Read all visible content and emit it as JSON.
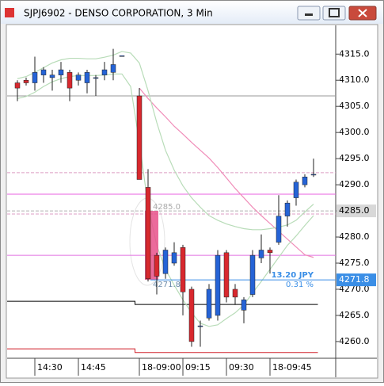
{
  "window": {
    "title": "SJPJ6902 - DENSO CORPORATION, 3 Min"
  },
  "chart_data": {
    "type": "candlestick",
    "categories": [
      null,
      null,
      "14:30",
      null,
      null,
      null,
      null,
      "14:45",
      null,
      null,
      null,
      null,
      null,
      null,
      "18-09:00",
      null,
      null,
      null,
      null,
      "09:15",
      null,
      null,
      null,
      null,
      "09:30",
      null,
      null,
      null,
      null,
      "18-09:45",
      null,
      null,
      null,
      null,
      null
    ],
    "open": [
      4309.5,
      4310,
      4309.5,
      4311,
      4310.5,
      4311,
      4311.5,
      4310,
      4309.5,
      4310.5,
      4311,
      4311.5,
      4314.7,
      null,
      4307,
      4289.5,
      4276.5,
      4273,
      4275,
      4278,
      4270,
      4263,
      4264.5,
      4265,
      4277,
      4270,
      4266,
      4269,
      4276,
      4277.5,
      4279,
      4284,
      4287.5,
      4290,
      4292
    ],
    "high": [
      4310,
      4310.5,
      4314.5,
      4312.5,
      4312,
      4313.5,
      4312,
      4311.5,
      4312,
      4311,
      4313.5,
      4316,
      4314.7,
      null,
      4308.5,
      4293,
      4277,
      4278,
      4279,
      4278.5,
      4270.5,
      4264,
      4271,
      4277.5,
      4277.5,
      4271,
      4268.5,
      4277.5,
      4280.5,
      4278,
      4288,
      4287,
      4291,
      4292,
      4295
    ],
    "low": [
      4306,
      4309,
      4308,
      4309.5,
      4308,
      4309.5,
      4306,
      4309,
      4307.5,
      4307,
      4310,
      4310,
      4314.7,
      null,
      4291,
      4271.5,
      4269,
      4272,
      4274.5,
      4265,
      4259,
      4259,
      4264,
      4264,
      4267.5,
      4267,
      4263.5,
      4268.5,
      4275,
      4273,
      4278.5,
      4282,
      4286,
      4289.5,
      4291.5
    ],
    "close": [
      4308.5,
      4309.5,
      4311.5,
      4312,
      4311,
      4312,
      4308.5,
      4311,
      4311.5,
      4310.5,
      4312,
      4313,
      4314.7,
      null,
      4291,
      4272,
      4272.5,
      4277.5,
      4277,
      4269.5,
      4260,
      4263,
      4270,
      4276.5,
      4268.5,
      4268.5,
      4268,
      4276.5,
      4277.5,
      4277,
      4284,
      4286.5,
      4290.5,
      4291.5,
      4292
    ],
    "up_color": "#2563d6",
    "down_color": "#d8282e",
    "lines": [
      {
        "color": "#f08cb8",
        "values": [
          null,
          null,
          null,
          null,
          null,
          null,
          null,
          null,
          null,
          null,
          null,
          null,
          null,
          null,
          4308.5,
          4306.5,
          4304.7,
          4303,
          4301.2,
          4299.7,
          4298.1,
          4296.6,
          4295.1,
          4293.3,
          4291.3,
          4289.3,
          4287.5,
          4285.7,
          4284.1,
          4282.6,
          4281.1,
          4279.6,
          4278.1,
          4276.6,
          4276.1
        ]
      },
      {
        "color": "#b8dcb8",
        "values": [
          4310.3,
          4310.7,
          4311.5,
          4312.4,
          4313.3,
          4313.9,
          4314.2,
          4314.2,
          4314.1,
          4314.1,
          4314.4,
          4314.8,
          4315.5,
          4315.2,
          4313.3,
          4308,
          4301.9,
          4296.6,
          4292.8,
          4289.8,
          4287.5,
          4285.7,
          4284.1,
          4283.2,
          4282.5,
          4282,
          4281.6,
          4281.4,
          4281.4,
          4281.6,
          4281.9,
          4282.3,
          4283.2,
          4284.8,
          4286.3
        ]
      },
      {
        "color": "#b8dcb8",
        "values": [
          4306.5,
          4306.9,
          4307.7,
          4308.8,
          4309.7,
          4310.3,
          4310.7,
          4310.9,
          4310.9,
          4310.9,
          4311,
          4311.2,
          4311.2,
          4308.8,
          4298.1,
          4286,
          4278.4,
          4273.8,
          4270.8,
          4268,
          4265.5,
          4263.5,
          4262.9,
          4263.2,
          4264.4,
          4265.5,
          4267,
          4269.3,
          4271.5,
          4273.8,
          4276.1,
          4278.4,
          4280.2,
          4282.2,
          4284.1
        ]
      }
    ],
    "steps": [
      {
        "color": "#000000",
        "values": [
          4267.7,
          4267.7,
          4267.7,
          4267.7,
          4267.7,
          4267.7,
          4267.7,
          4267.7,
          4267.7,
          4267.7,
          4267.7,
          4267.7,
          4267.7,
          4267.7,
          4267.1,
          4267.1,
          4267.1,
          4267.1,
          4267.1,
          4267.1,
          4267.1,
          4267.1,
          4267.1,
          4267.1,
          4267.1,
          4267.1,
          4267.1,
          4267.1,
          4267.1,
          4267.1,
          4267.1,
          4267.1,
          4267.1,
          4267.1,
          4267.1
        ]
      },
      {
        "color": "#d0202a",
        "values": [
          4258.6,
          4258.6,
          4258.6,
          4258.6,
          4258.6,
          4258.6,
          4258.6,
          4258.6,
          4258.6,
          4258.6,
          4258.6,
          4258.6,
          4258.6,
          4258.6,
          4257.9,
          4257.9,
          4257.9,
          4257.9,
          4257.9,
          4257.9,
          4257.9,
          4257.9,
          4257.9,
          4257.9,
          4257.9,
          4257.9,
          4257.9,
          4257.9,
          4257.9,
          4257.9,
          4257.9,
          4257.9,
          4257.9,
          4257.9,
          4257.9
        ]
      }
    ],
    "levels": [
      {
        "value": 4307,
        "color": "#9a9a9a"
      },
      {
        "value": 4292.3,
        "color": "#dc9ec4",
        "dashed": true
      },
      {
        "value": 4288.2,
        "color": "#e860e0"
      },
      {
        "value": 4285,
        "color": "#b0b0b0",
        "dashed": true,
        "label": "4285.0",
        "label_bg": "#d8d8d8",
        "label_color": "#000000"
      },
      {
        "value": 4284.4,
        "color": "#dc9ec4",
        "dashed": true
      },
      {
        "value": 4276.5,
        "color": "#e070e0"
      }
    ],
    "measure": {
      "from": 4285,
      "to": 4271.8,
      "from_label": "4285.0",
      "to_label": "4271.8",
      "change_label": "13.20 JPY",
      "percent_label": "0.31 %",
      "value_label": "4271.8",
      "color": "#e8508a",
      "line_color": "#3a8ee6"
    },
    "ylim": [
      4256.8,
      4320.5
    ],
    "yticks": [
      {
        "value": 4260,
        "label": "4260.0"
      },
      {
        "value": 4265,
        "label": "4265.0"
      },
      {
        "value": 4270,
        "label": "4270.0"
      },
      {
        "value": 4275,
        "label": "4275.0"
      },
      {
        "value": 4280,
        "label": "4280.0"
      },
      {
        "value": 4285,
        "label": "4285.0"
      },
      {
        "value": 4290,
        "label": "4290.0"
      },
      {
        "value": 4295,
        "label": "4295.0"
      },
      {
        "value": 4300,
        "label": "4300.0"
      },
      {
        "value": 4305,
        "label": "4305.0"
      },
      {
        "value": 4310,
        "label": "4310.0"
      },
      {
        "value": 4315,
        "label": "4315.0"
      }
    ]
  }
}
